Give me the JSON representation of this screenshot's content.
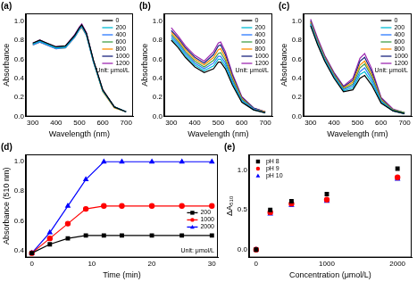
{
  "chart_data": [
    {
      "type": "line",
      "title": "(a)",
      "x_label": "Wavelength (nm)",
      "y_label": "Absorbance",
      "x": [
        300,
        330,
        360,
        400,
        440,
        480,
        500,
        510,
        530,
        560,
        600,
        650,
        700
      ],
      "series": [
        {
          "name": "0",
          "color": "#000000",
          "marker": "none",
          "line_style": "solid",
          "values": [
            0.77,
            0.8,
            0.77,
            0.73,
            0.74,
            0.85,
            0.93,
            0.96,
            0.87,
            0.59,
            0.28,
            0.1,
            0.05
          ]
        },
        {
          "name": "200",
          "color": "#00bcd4",
          "marker": "none",
          "line_style": "solid",
          "values": [
            0.76,
            0.79,
            0.76,
            0.72,
            0.73,
            0.84,
            0.92,
            0.95,
            0.86,
            0.58,
            0.27,
            0.1,
            0.05
          ]
        },
        {
          "name": "400",
          "color": "#2979ff",
          "marker": "none",
          "line_style": "solid",
          "values": [
            0.75,
            0.78,
            0.75,
            0.71,
            0.72,
            0.83,
            0.91,
            0.94,
            0.85,
            0.57,
            0.27,
            0.1,
            0.05
          ]
        },
        {
          "name": "600",
          "color": "#43a047",
          "marker": "none",
          "line_style": "solid",
          "values": [
            0.76,
            0.78,
            0.76,
            0.72,
            0.72,
            0.84,
            0.92,
            0.94,
            0.86,
            0.58,
            0.27,
            0.1,
            0.05
          ]
        },
        {
          "name": "800",
          "color": "#ff8f00",
          "marker": "none",
          "line_style": "solid",
          "values": [
            0.75,
            0.78,
            0.75,
            0.71,
            0.72,
            0.83,
            0.91,
            0.93,
            0.85,
            0.57,
            0.26,
            0.09,
            0.05
          ]
        },
        {
          "name": "1000",
          "color": "#1a237e",
          "marker": "none",
          "line_style": "solid",
          "values": [
            0.76,
            0.79,
            0.76,
            0.72,
            0.73,
            0.85,
            0.93,
            0.95,
            0.87,
            0.58,
            0.27,
            0.1,
            0.05
          ]
        },
        {
          "name": "1200",
          "color": "#9c27b0",
          "marker": "none",
          "line_style": "solid",
          "values": [
            0.77,
            0.8,
            0.77,
            0.73,
            0.74,
            0.86,
            0.94,
            0.97,
            0.88,
            0.59,
            0.28,
            0.1,
            0.05
          ]
        }
      ],
      "xlim": [
        270,
        730
      ],
      "xticks": [
        300,
        400,
        500,
        600,
        700
      ],
      "ylim": [
        0,
        1.08
      ],
      "yticks": [
        {
          "value": 0,
          "label": "0.0"
        },
        0.2,
        0.4,
        0.6,
        0.8,
        {
          "value": 1,
          "label": "1.0"
        }
      ],
      "grid": false,
      "legend": "upper right",
      "annotation": "Unit: μmol/L"
    },
    {
      "type": "line",
      "title": "(b)",
      "x_label": "Wavelength (nm)",
      "y_label": "Absorbance",
      "x": [
        300,
        330,
        360,
        400,
        440,
        480,
        500,
        510,
        530,
        560,
        600,
        650,
        700
      ],
      "series": [
        {
          "name": "0",
          "color": "#000000",
          "marker": "none",
          "line_style": "solid",
          "values": [
            0.8,
            0.72,
            0.62,
            0.52,
            0.46,
            0.5,
            0.57,
            0.57,
            0.5,
            0.33,
            0.15,
            0.07,
            0.04
          ]
        },
        {
          "name": "200",
          "color": "#00bcd4",
          "marker": "none",
          "line_style": "solid",
          "values": [
            0.82,
            0.74,
            0.64,
            0.54,
            0.48,
            0.53,
            0.6,
            0.6,
            0.53,
            0.35,
            0.16,
            0.07,
            0.04
          ]
        },
        {
          "name": "400",
          "color": "#2979ff",
          "marker": "none",
          "line_style": "solid",
          "values": [
            0.84,
            0.76,
            0.66,
            0.56,
            0.5,
            0.56,
            0.63,
            0.63,
            0.56,
            0.37,
            0.17,
            0.08,
            0.04
          ]
        },
        {
          "name": "600",
          "color": "#43a047",
          "marker": "none",
          "line_style": "solid",
          "values": [
            0.86,
            0.78,
            0.68,
            0.58,
            0.52,
            0.59,
            0.66,
            0.67,
            0.59,
            0.39,
            0.18,
            0.08,
            0.04
          ]
        },
        {
          "name": "800",
          "color": "#ff8f00",
          "marker": "none",
          "line_style": "solid",
          "values": [
            0.88,
            0.8,
            0.7,
            0.6,
            0.54,
            0.62,
            0.7,
            0.71,
            0.62,
            0.41,
            0.19,
            0.08,
            0.05
          ]
        },
        {
          "name": "1000",
          "color": "#1a237e",
          "marker": "none",
          "line_style": "solid",
          "values": [
            0.9,
            0.82,
            0.72,
            0.62,
            0.56,
            0.65,
            0.74,
            0.75,
            0.65,
            0.43,
            0.2,
            0.09,
            0.05
          ]
        },
        {
          "name": "1200",
          "color": "#9c27b0",
          "marker": "none",
          "line_style": "solid",
          "values": [
            0.93,
            0.84,
            0.74,
            0.64,
            0.58,
            0.68,
            0.77,
            0.78,
            0.68,
            0.45,
            0.21,
            0.09,
            0.05
          ]
        }
      ],
      "xlim": [
        270,
        730
      ],
      "xticks": [
        300,
        400,
        500,
        600,
        700
      ],
      "ylim": [
        0,
        1.08
      ],
      "yticks": [
        {
          "value": 0,
          "label": "0.0"
        },
        0.2,
        0.4,
        0.6,
        0.8,
        {
          "value": 1,
          "label": "1.0"
        }
      ],
      "grid": false,
      "legend": "upper right",
      "annotation": "Unit: μmol/L"
    },
    {
      "type": "line",
      "title": "(c)",
      "x_label": "Wavelength (nm)",
      "y_label": "Absorbance",
      "x": [
        300,
        330,
        360,
        400,
        440,
        480,
        500,
        510,
        530,
        560,
        600,
        650,
        700
      ],
      "series": [
        {
          "name": "0",
          "color": "#000000",
          "marker": "none",
          "line_style": "solid",
          "values": [
            0.95,
            0.75,
            0.58,
            0.4,
            0.26,
            0.28,
            0.36,
            0.4,
            0.43,
            0.33,
            0.14,
            0.06,
            0.03
          ]
        },
        {
          "name": "200",
          "color": "#00bcd4",
          "marker": "none",
          "line_style": "solid",
          "values": [
            0.96,
            0.76,
            0.59,
            0.41,
            0.27,
            0.3,
            0.39,
            0.44,
            0.47,
            0.36,
            0.15,
            0.06,
            0.03
          ]
        },
        {
          "name": "400",
          "color": "#2979ff",
          "marker": "none",
          "line_style": "solid",
          "values": [
            0.97,
            0.77,
            0.6,
            0.42,
            0.28,
            0.32,
            0.42,
            0.47,
            0.51,
            0.39,
            0.16,
            0.06,
            0.03
          ]
        },
        {
          "name": "600",
          "color": "#43a047",
          "marker": "none",
          "line_style": "solid",
          "values": [
            0.98,
            0.78,
            0.61,
            0.43,
            0.29,
            0.34,
            0.45,
            0.51,
            0.55,
            0.42,
            0.17,
            0.07,
            0.04
          ]
        },
        {
          "name": "800",
          "color": "#ff8f00",
          "marker": "none",
          "line_style": "solid",
          "values": [
            0.99,
            0.79,
            0.62,
            0.44,
            0.3,
            0.36,
            0.48,
            0.54,
            0.58,
            0.44,
            0.18,
            0.07,
            0.04
          ]
        },
        {
          "name": "1000",
          "color": "#1a237e",
          "marker": "none",
          "line_style": "solid",
          "values": [
            1.0,
            0.8,
            0.63,
            0.45,
            0.31,
            0.38,
            0.51,
            0.58,
            0.62,
            0.47,
            0.19,
            0.07,
            0.04
          ]
        },
        {
          "name": "1200",
          "color": "#9c27b0",
          "marker": "none",
          "line_style": "solid",
          "values": [
            1.02,
            0.82,
            0.64,
            0.46,
            0.32,
            0.4,
            0.54,
            0.61,
            0.66,
            0.5,
            0.2,
            0.08,
            0.04
          ]
        }
      ],
      "xlim": [
        270,
        730
      ],
      "xticks": [
        300,
        400,
        500,
        600,
        700
      ],
      "ylim": [
        0,
        1.08
      ],
      "yticks": [
        {
          "value": 0,
          "label": "0.0"
        },
        0.2,
        0.4,
        0.6,
        0.8,
        {
          "value": 1,
          "label": "1.0"
        }
      ],
      "grid": false,
      "legend": "upper right",
      "annotation": "Unit: μmol/L"
    },
    {
      "type": "line",
      "title": "(d)",
      "x_label": "Time (min)",
      "y_label": "Absorbance (510 nm)",
      "x": [
        0,
        3,
        6,
        9,
        12,
        15,
        20,
        25,
        30
      ],
      "series": [
        {
          "name": "200",
          "color": "#000000",
          "marker": "square",
          "line_style": "solid",
          "values": [
            0.38,
            0.44,
            0.48,
            0.5,
            0.5,
            0.5,
            0.5,
            0.5,
            0.5
          ]
        },
        {
          "name": "1000",
          "color": "#ff0000",
          "marker": "circle",
          "line_style": "solid",
          "values": [
            0.38,
            0.48,
            0.58,
            0.68,
            0.7,
            0.7,
            0.7,
            0.7,
            0.7
          ]
        },
        {
          "name": "2000",
          "color": "#0000ff",
          "marker": "triangle",
          "line_style": "solid",
          "values": [
            0.38,
            0.52,
            0.7,
            0.88,
            1.0,
            1.0,
            1.0,
            1.0,
            1.0
          ]
        }
      ],
      "xlim": [
        -1,
        31
      ],
      "xticks": [
        0,
        10,
        20,
        30
      ],
      "ylim": [
        0.35,
        1.05
      ],
      "yticks": [
        0.4,
        0.6,
        0.8,
        {
          "value": 1,
          "label": "1.0"
        }
      ],
      "grid": false,
      "legend": "center right",
      "annotation": "Unit: μmol/L"
    },
    {
      "type": "scatter",
      "title": "(e)",
      "x_label": "Concentration (μmol/L)",
      "y_label": "ΔA₅₁₀",
      "x": [
        0,
        200,
        500,
        1000,
        2000
      ],
      "series": [
        {
          "name": "pH 8",
          "color": "#000000",
          "marker": "square",
          "values": [
            0,
            0.5,
            0.61,
            0.7,
            1.02
          ]
        },
        {
          "name": "pH 9",
          "color": "#ff0000",
          "marker": "circle",
          "values": [
            0,
            0.47,
            0.58,
            0.63,
            0.91
          ]
        },
        {
          "name": "pH 10",
          "color": "#0000ff",
          "marker": "triangle",
          "values": [
            0,
            0.45,
            0.56,
            0.61,
            0.89
          ]
        }
      ],
      "xlim": [
        -100,
        2200
      ],
      "xticks": [
        0,
        1000,
        2000
      ],
      "ylim": [
        -0.1,
        1.2
      ],
      "yticks": [
        {
          "value": 0,
          "label": "0.0"
        },
        0.5,
        {
          "value": 1,
          "label": "1.0"
        }
      ],
      "grid": false,
      "legend": "upper left"
    }
  ]
}
